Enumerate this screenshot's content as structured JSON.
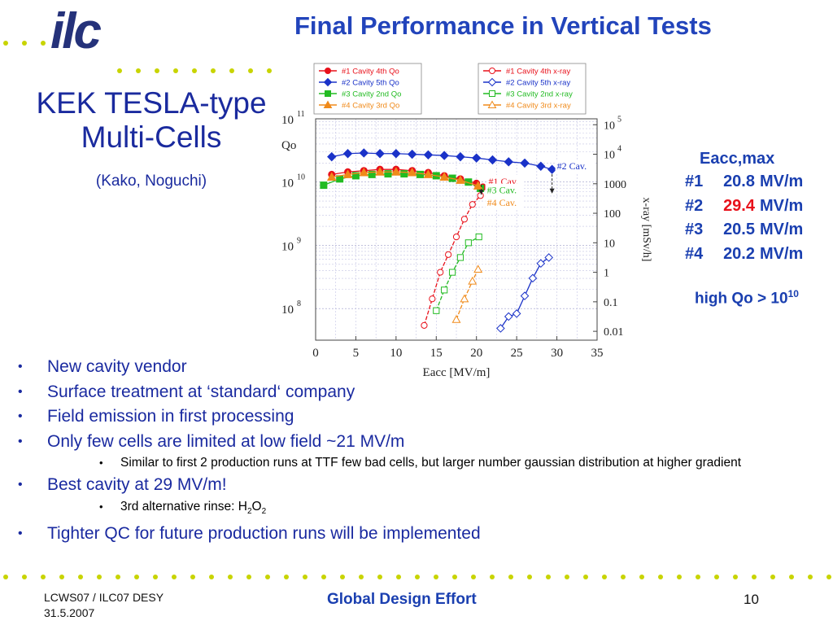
{
  "logo": {
    "text": "ilc",
    "color": "#25327a"
  },
  "title": "Final Performance in Vertical Tests",
  "left": {
    "title": "KEK TESLA-type Multi-Cells",
    "subtitle": "(Kako, Noguchi)"
  },
  "results": {
    "header": "Eacc,max",
    "rows": [
      {
        "id": "#1",
        "value": "20.8",
        "unit": "MV/m"
      },
      {
        "id": "#2",
        "value": "29.4",
        "unit": "MV/m",
        "highlight": "#e8101a"
      },
      {
        "id": "#3",
        "value": "20.5",
        "unit": "MV/m"
      },
      {
        "id": "#4",
        "value": "20.2",
        "unit": "MV/m"
      }
    ],
    "note_text": "high Qo > 10",
    "note_exp": "10"
  },
  "bullets": {
    "b1": "New cavity vendor",
    "b2": "Surface treatment at ‘standard‘  company",
    "b3": "Field emission in first processing",
    "b4": "Only few cells are limited at low field ~21 MV/m",
    "b4_sub": "Similar to first 2 production runs at TTF few bad cells, but larger number gaussian distribution at higher gradient",
    "b5": "Best cavity at 29 MV/m!",
    "b5_sub_pre": "3rd alternative rinse: H",
    "b5_sub_s1": "2",
    "b5_sub_mid": "O",
    "b5_sub_s2": "2",
    "b6": "Tighter QC for future production runs will be implemented"
  },
  "footer": {
    "left_line1": "LCWS07 / ILC07 DESY",
    "left_line2": "31.5.2007",
    "center": "Global Design Effort",
    "page": "10"
  },
  "colors": {
    "title": "#2244bb",
    "text": "#1a2aa0",
    "dots": "#c8d400"
  },
  "chart_data": {
    "type": "scatter",
    "xlabel": "Eacc  [MV/m]",
    "ylabel": "Qo",
    "y2label": "x-ray  [mSv/h]",
    "xlim": [
      0,
      35
    ],
    "x_ticks": [
      "0",
      "5",
      "10",
      "15",
      "20",
      "25",
      "30",
      "35"
    ],
    "ylim_log": [
      7.5,
      11
    ],
    "y_ticks": [
      {
        "base": "10",
        "exp": "11",
        "pow": 11
      },
      {
        "base": "10",
        "exp": "10",
        "pow": 10
      },
      {
        "base": "10",
        "exp": "9",
        "pow": 9
      },
      {
        "base": "10",
        "exp": "8",
        "pow": 8
      }
    ],
    "y2lim_log": [
      -2.3,
      5.2
    ],
    "y2_ticks": [
      {
        "label": "10",
        "exp": "5",
        "pow": 5
      },
      {
        "label": "10",
        "exp": "4",
        "pow": 4
      },
      {
        "label": "1000",
        "exp": "",
        "pow": 3
      },
      {
        "label": "100",
        "exp": "",
        "pow": 2
      },
      {
        "label": "10",
        "exp": "",
        "pow": 1
      },
      {
        "label": "1",
        "exp": "",
        "pow": 0
      },
      {
        "label": "0.1",
        "exp": "",
        "pow": -1
      },
      {
        "label": "0.01",
        "exp": "",
        "pow": -2
      }
    ],
    "legend_qo": [
      "#1 Cavity 4th Qo",
      "#2 Cavity 5th Qo",
      "#3 Cavity 2nd Qo",
      "#4 Cavity 3rd Qo"
    ],
    "legend_xray": [
      "#1 Cavity 4th x-ray",
      "#2 Cavity 5th x-ray",
      "#3 Cavity 2nd x-ray",
      "#4 Cavity 3rd x-ray"
    ],
    "annotations": [
      {
        "text": "#1 Cav.",
        "color": "#e8101a"
      },
      {
        "text": "#2 Cav.",
        "color": "#1a32c8"
      },
      {
        "text": "#3 Cav.",
        "color": "#22bb22"
      },
      {
        "text": "#4 Cav.",
        "color": "#f08a1a"
      }
    ],
    "series": [
      {
        "color": "#e8101a",
        "marker": "circle",
        "qo_x": [
          2,
          4,
          6,
          8,
          10,
          12,
          14,
          16,
          18,
          20,
          20.8
        ],
        "qo_logy": [
          10.12,
          10.16,
          10.18,
          10.2,
          10.2,
          10.18,
          10.15,
          10.1,
          10.05,
          9.98,
          9.92
        ],
        "xray_x": [
          13.5,
          14.5,
          15.5,
          16.5,
          17.5,
          18.5,
          19.5,
          20.5
        ],
        "xray_logy": [
          -1.8,
          -0.9,
          0,
          0.6,
          1.2,
          1.8,
          2.3,
          2.6
        ]
      },
      {
        "color": "#1a32c8",
        "marker": "diamond",
        "qo_x": [
          2,
          4,
          6,
          8,
          10,
          12,
          14,
          16,
          18,
          20,
          22,
          24,
          26,
          28,
          29.4
        ],
        "qo_logy": [
          10.4,
          10.45,
          10.46,
          10.45,
          10.45,
          10.44,
          10.43,
          10.42,
          10.4,
          10.38,
          10.35,
          10.32,
          10.3,
          10.25,
          10.2
        ],
        "xray_x": [
          23,
          24,
          25,
          26,
          27,
          28,
          29
        ],
        "xray_logy": [
          -1.9,
          -1.5,
          -1.4,
          -0.8,
          -0.2,
          0.3,
          0.5
        ]
      },
      {
        "color": "#22bb22",
        "marker": "square",
        "qo_x": [
          1,
          3,
          5,
          7,
          9,
          11,
          13,
          15,
          17,
          19,
          20.5
        ],
        "qo_logy": [
          9.95,
          10.05,
          10.1,
          10.12,
          10.13,
          10.13,
          10.12,
          10.1,
          10.06,
          10.0,
          9.9
        ],
        "xray_x": [
          15,
          16,
          17,
          18,
          19,
          20.3
        ],
        "xray_logy": [
          -1.3,
          -0.6,
          0,
          0.5,
          1.0,
          1.2
        ]
      },
      {
        "color": "#f08a1a",
        "marker": "triangle",
        "qo_x": [
          2,
          4,
          6,
          8,
          10,
          12,
          14,
          16,
          18,
          20.2
        ],
        "qo_logy": [
          10.08,
          10.12,
          10.15,
          10.16,
          10.16,
          10.15,
          10.12,
          10.08,
          10.03,
          9.94
        ],
        "xray_x": [
          17.5,
          18.5,
          19.5,
          20.2
        ],
        "xray_logy": [
          -1.6,
          -0.9,
          -0.3,
          0.1
        ]
      }
    ]
  }
}
